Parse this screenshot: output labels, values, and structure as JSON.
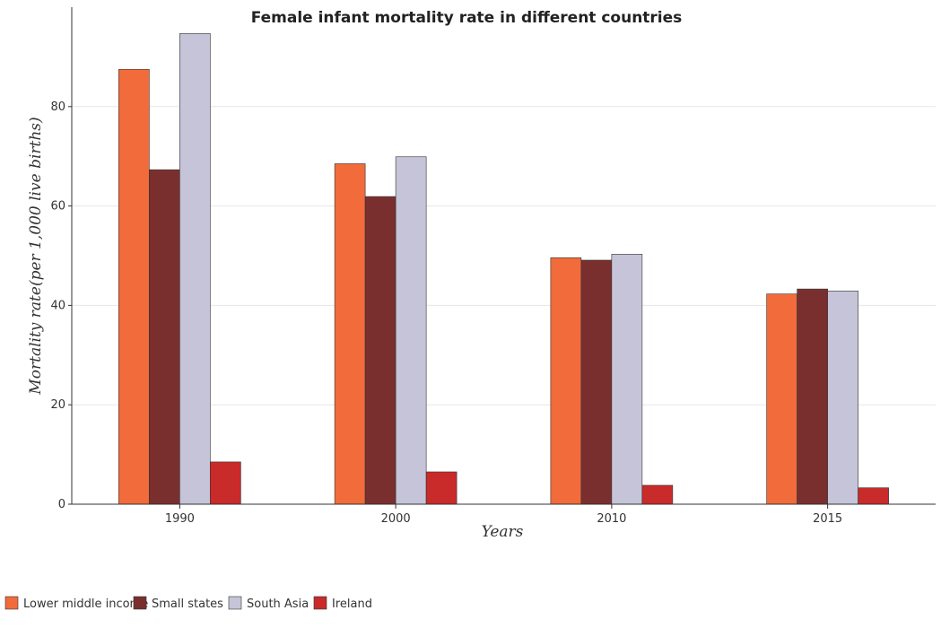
{
  "chart_data": {
    "type": "bar",
    "title": "Female infant mortality rate in different countries",
    "xlabel": "Years",
    "ylabel": "Mortality rate(per 1,000 live births)",
    "categories": [
      "1990",
      "2000",
      "2010",
      "2015"
    ],
    "ylim": [
      0,
      100
    ],
    "yticks": [
      0,
      20,
      40,
      60,
      80
    ],
    "grid": true,
    "legend_position": "bottom-left",
    "series": [
      {
        "name": "Lower middle income",
        "color": "#f26b3a",
        "values": [
          87.5,
          68.5,
          49.6,
          42.3
        ]
      },
      {
        "name": "Small states",
        "color": "#7a2f2f",
        "values": [
          67.3,
          61.9,
          49.1,
          43.3
        ]
      },
      {
        "name": "South Asia",
        "color": "#c6c4d8",
        "values": [
          94.7,
          69.9,
          50.3,
          42.9
        ]
      },
      {
        "name": "Ireland",
        "color": "#c92a2a",
        "values": [
          8.5,
          6.5,
          3.8,
          3.3
        ]
      }
    ]
  }
}
